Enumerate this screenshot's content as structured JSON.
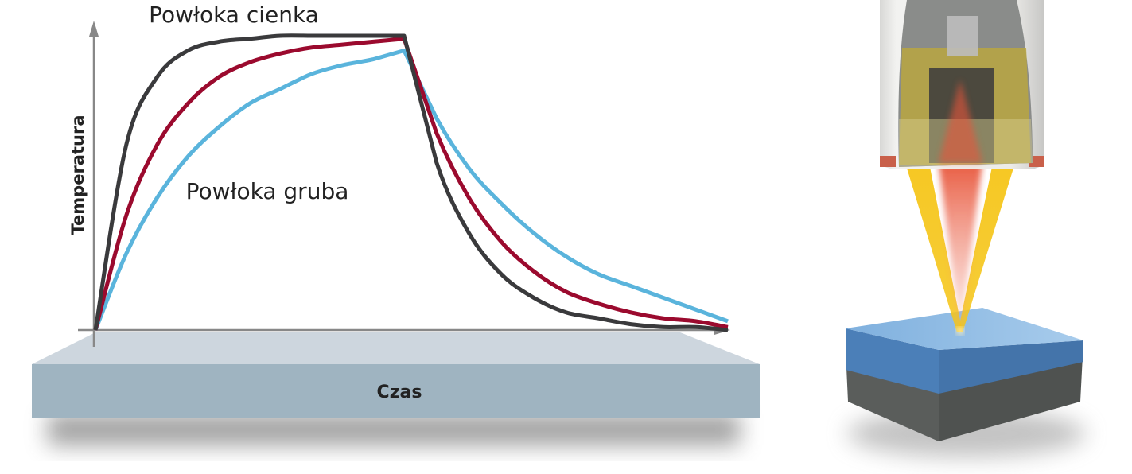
{
  "labels": {
    "thin_coating": "Powłoka cienka",
    "thick_coating": "Powłoka gruba",
    "y_axis": "Temperatura",
    "x_axis": "Czas"
  },
  "chart_data": {
    "type": "line",
    "xlabel": "Czas",
    "ylabel": "Temperatura",
    "x": [
      0,
      0.1,
      0.2,
      0.3,
      0.4,
      0.5,
      0.6,
      0.7,
      0.8,
      0.9,
      1.0,
      1.1,
      1.2,
      1.3,
      1.4,
      1.5,
      1.6,
      1.7,
      1.8,
      1.9,
      2.0
    ],
    "xlim": [
      0,
      2
    ],
    "ylim": [
      0,
      1
    ],
    "grid": false,
    "ticks": false,
    "series": [
      {
        "name": "Powłoka cienka",
        "color": "#3a3a3c",
        "values": [
          0,
          0.63,
          0.86,
          0.95,
          0.98,
          0.99,
          1,
          1,
          1,
          1,
          1,
          0.57,
          0.33,
          0.19,
          0.11,
          0.06,
          0.04,
          0.02,
          0.01,
          0.01,
          0
        ]
      },
      {
        "color": "#9b0a2e",
        "values": [
          0,
          0.39,
          0.63,
          0.77,
          0.86,
          0.91,
          0.94,
          0.96,
          0.97,
          0.98,
          0.99,
          0.67,
          0.45,
          0.3,
          0.2,
          0.13,
          0.09,
          0.06,
          0.04,
          0.03,
          0.01
        ]
      },
      {
        "name": "Powłoka gruba",
        "color": "#5ab4dc",
        "values": [
          0,
          0.26,
          0.45,
          0.59,
          0.69,
          0.77,
          0.82,
          0.87,
          0.9,
          0.92,
          0.95,
          0.72,
          0.55,
          0.43,
          0.33,
          0.25,
          0.19,
          0.15,
          0.11,
          0.07,
          0.03
        ]
      }
    ]
  },
  "colors": {
    "plate_top": "#cdd6de",
    "plate_front": "#9fb4c1",
    "coating": "#5b95cf",
    "substrate": "#575a58",
    "heating_beam": "#f5c518",
    "detector_beam": "#e8553a"
  }
}
